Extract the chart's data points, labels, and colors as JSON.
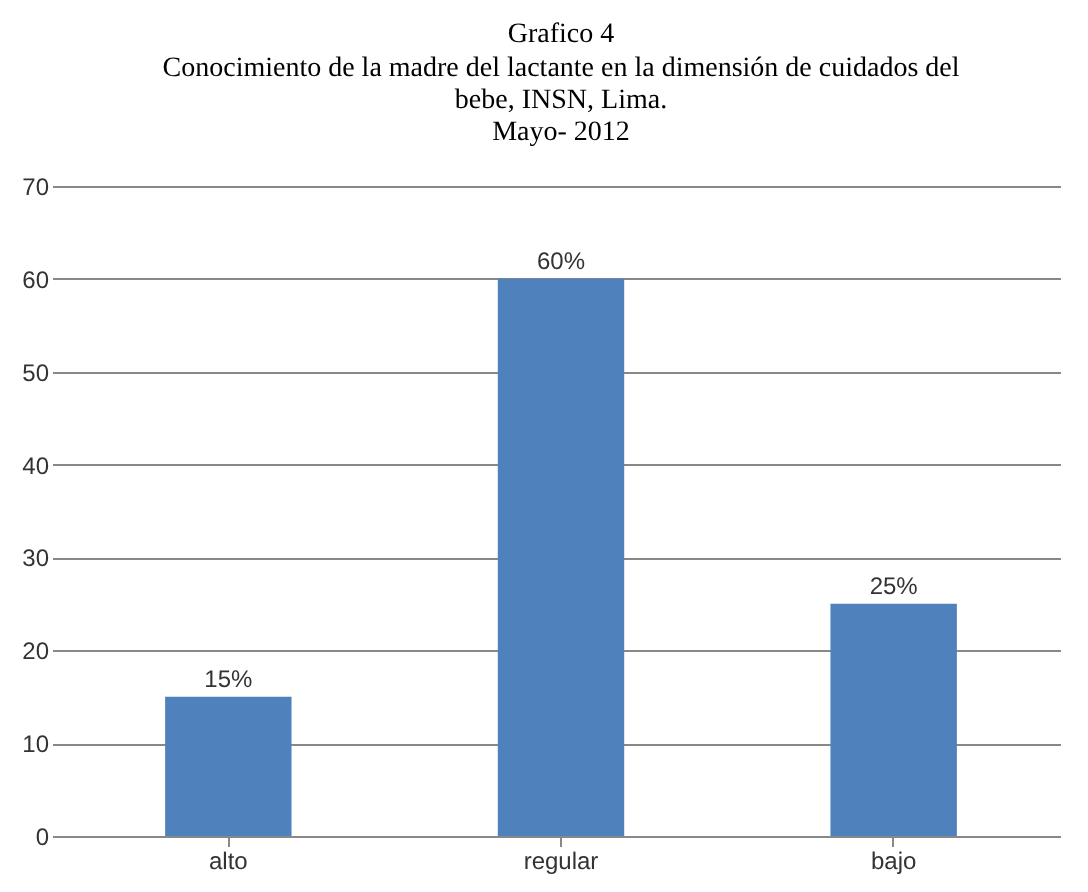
{
  "chart_data": {
    "type": "bar",
    "title": "Grafico 4",
    "subtitle": "Conocimiento de la madre del lactante en la dimensión de cuidados del\nbebe,   INSN, Lima.\nMayo- 2012",
    "categories": [
      "alto",
      "regular",
      "bajo"
    ],
    "values": [
      15,
      60,
      25
    ],
    "value_labels": [
      "15%",
      "60%",
      "25%"
    ],
    "color": "#4f81bd",
    "ylim": [
      0,
      70
    ],
    "yticks": [
      0,
      10,
      20,
      30,
      40,
      50,
      60,
      70
    ],
    "grid": "y"
  }
}
